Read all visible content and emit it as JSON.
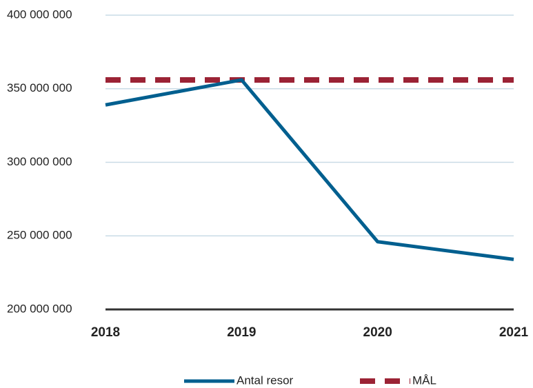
{
  "chart_data": {
    "type": "line",
    "categories": [
      "2018",
      "2019",
      "2020",
      "2021"
    ],
    "series": [
      {
        "name": "Antal resor",
        "color": "#005f8f",
        "values": [
          339000000,
          356000000,
          246000000,
          234000000
        ]
      },
      {
        "name": "MÅL",
        "color": "#9b2335",
        "dashed": true,
        "values": [
          356000000,
          356000000,
          356000000,
          356000000
        ]
      }
    ],
    "ylim": [
      200000000,
      400000000
    ],
    "yticks": [
      {
        "value": 200000000,
        "label": "200 000 000"
      },
      {
        "value": 250000000,
        "label": "250 000 000"
      },
      {
        "value": 300000000,
        "label": "300 000 000"
      },
      {
        "value": 350000000,
        "label": "350 000 000"
      },
      {
        "value": 400000000,
        "label": "400 000 000"
      }
    ],
    "grid": true,
    "legend": "bottom"
  }
}
